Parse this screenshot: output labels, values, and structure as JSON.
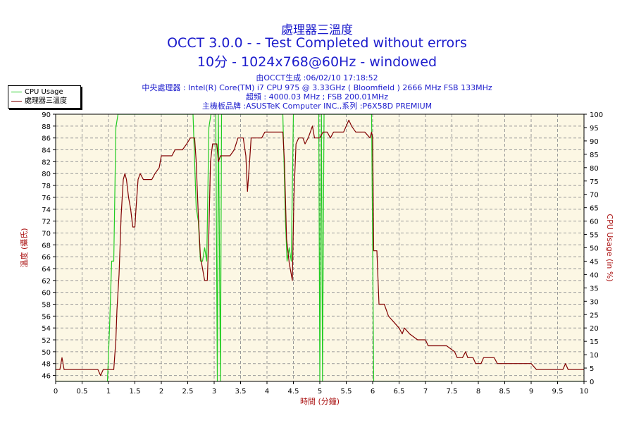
{
  "chart_data": {
    "type": "line",
    "title": "處理器三溫度",
    "subtitle_line1": "OCCT 3.0.0 -  - Test Completed without errors",
    "subtitle_line2": "10分 - 1024x768@60Hz - windowed",
    "info_lines": [
      "由OCCT生成 :06/02/10 17:18:52",
      "中央處理器 : Intel(R) Core(TM) i7 CPU 975 @ 3.33GHz ( Bloomfield ) 2666 MHz FSB 133MHz",
      "超頻 : 4000.03 MHz ; FSB 200.01MHz",
      "主機板品牌 :ASUSTeK Computer INC.,系列 :P6X58D PREMIUM"
    ],
    "xlabel": "時間 (分鐘)",
    "ylabel_left": "溫度 (攝氏)",
    "ylabel_right": "CPU Usage (in %)",
    "xlim": [
      0,
      10
    ],
    "ylim_left": [
      45,
      90
    ],
    "ylim_right": [
      0,
      100
    ],
    "x_ticks": [
      "0",
      "0.5",
      "1",
      "1.5",
      "2",
      "2.5",
      "3",
      "3.5",
      "4",
      "4.5",
      "5",
      "5.5",
      "6",
      "6.5",
      "7",
      "7.5",
      "8",
      "8.5",
      "9",
      "9.5",
      "10"
    ],
    "y_ticks_left": [
      "46",
      "48",
      "50",
      "52",
      "54",
      "56",
      "58",
      "60",
      "62",
      "64",
      "66",
      "68",
      "70",
      "72",
      "74",
      "76",
      "78",
      "80",
      "82",
      "84",
      "86",
      "88",
      "90"
    ],
    "y_ticks_right": [
      "0",
      "5",
      "10",
      "15",
      "20",
      "25",
      "30",
      "35",
      "40",
      "45",
      "50",
      "55",
      "60",
      "65",
      "70",
      "75",
      "80",
      "85",
      "90",
      "95",
      "100"
    ],
    "grid": true,
    "legend_position": "top-left",
    "colors": {
      "cpu_usage": "#22cc22",
      "temperature": "#800000",
      "plot_bg": "#fcf7e4",
      "title": "#1b1bcc",
      "axis_label": "#aa1111"
    },
    "series": [
      {
        "name": "CPU Usage",
        "axis": "right",
        "points": [
          [
            0,
            0
          ],
          [
            0.98,
            0
          ],
          [
            1.02,
            20
          ],
          [
            1.06,
            45
          ],
          [
            1.1,
            45
          ],
          [
            1.14,
            95
          ],
          [
            1.18,
            100
          ],
          [
            2.6,
            100
          ],
          [
            2.66,
            65
          ],
          [
            2.7,
            60
          ],
          [
            2.74,
            45
          ],
          [
            2.78,
            45
          ],
          [
            2.82,
            50
          ],
          [
            2.86,
            45
          ],
          [
            2.9,
            95
          ],
          [
            2.94,
            100
          ],
          [
            3.03,
            100
          ],
          [
            3.06,
            0
          ],
          [
            3.08,
            100
          ],
          [
            3.12,
            0
          ],
          [
            3.14,
            100
          ],
          [
            4.3,
            100
          ],
          [
            4.35,
            60
          ],
          [
            4.38,
            45
          ],
          [
            4.42,
            50
          ],
          [
            4.46,
            45
          ],
          [
            4.5,
            100
          ],
          [
            4.98,
            100
          ],
          [
            5.0,
            0
          ],
          [
            5.03,
            100
          ],
          [
            5.05,
            0
          ],
          [
            5.08,
            100
          ],
          [
            5.98,
            100
          ],
          [
            6.02,
            0
          ],
          [
            10,
            0
          ]
        ]
      },
      {
        "name": "處理器三溫度",
        "axis": "left",
        "points": [
          [
            0,
            47
          ],
          [
            0.08,
            47
          ],
          [
            0.12,
            49
          ],
          [
            0.16,
            47
          ],
          [
            0.8,
            47
          ],
          [
            0.85,
            46
          ],
          [
            0.9,
            47
          ],
          [
            1.05,
            47
          ],
          [
            1.1,
            47
          ],
          [
            1.14,
            52
          ],
          [
            1.16,
            57
          ],
          [
            1.2,
            63
          ],
          [
            1.24,
            73
          ],
          [
            1.28,
            79
          ],
          [
            1.31,
            80
          ],
          [
            1.34,
            79
          ],
          [
            1.38,
            76
          ],
          [
            1.42,
            74
          ],
          [
            1.46,
            71
          ],
          [
            1.5,
            71
          ],
          [
            1.52,
            74
          ],
          [
            1.56,
            79
          ],
          [
            1.6,
            80
          ],
          [
            1.66,
            79
          ],
          [
            1.82,
            79
          ],
          [
            1.88,
            80
          ],
          [
            1.96,
            81
          ],
          [
            2.0,
            83
          ],
          [
            2.2,
            83
          ],
          [
            2.26,
            84
          ],
          [
            2.4,
            84
          ],
          [
            2.48,
            85
          ],
          [
            2.55,
            86
          ],
          [
            2.63,
            86
          ],
          [
            2.66,
            82
          ],
          [
            2.7,
            73
          ],
          [
            2.74,
            66
          ],
          [
            2.78,
            64
          ],
          [
            2.82,
            62
          ],
          [
            2.87,
            62
          ],
          [
            2.9,
            70
          ],
          [
            2.93,
            82
          ],
          [
            2.97,
            85
          ],
          [
            3.05,
            85
          ],
          [
            3.08,
            82
          ],
          [
            3.12,
            83
          ],
          [
            3.3,
            83
          ],
          [
            3.38,
            84
          ],
          [
            3.45,
            86
          ],
          [
            3.55,
            86
          ],
          [
            3.6,
            83
          ],
          [
            3.63,
            77
          ],
          [
            3.67,
            82
          ],
          [
            3.7,
            86
          ],
          [
            3.78,
            86
          ],
          [
            3.9,
            86
          ],
          [
            3.96,
            87
          ],
          [
            4.3,
            87
          ],
          [
            4.33,
            82
          ],
          [
            4.37,
            69
          ],
          [
            4.42,
            65
          ],
          [
            4.46,
            63
          ],
          [
            4.48,
            62
          ],
          [
            4.51,
            76
          ],
          [
            4.55,
            85
          ],
          [
            4.6,
            86
          ],
          [
            4.68,
            86
          ],
          [
            4.72,
            85
          ],
          [
            4.78,
            86
          ],
          [
            4.82,
            87
          ],
          [
            4.86,
            88
          ],
          [
            4.9,
            86
          ],
          [
            5.0,
            86
          ],
          [
            5.06,
            87
          ],
          [
            5.14,
            87
          ],
          [
            5.2,
            86
          ],
          [
            5.26,
            87
          ],
          [
            5.35,
            87
          ],
          [
            5.45,
            87
          ],
          [
            5.5,
            88
          ],
          [
            5.55,
            89
          ],
          [
            5.6,
            88
          ],
          [
            5.68,
            87
          ],
          [
            5.75,
            87
          ],
          [
            5.85,
            87
          ],
          [
            5.95,
            86
          ],
          [
            5.98,
            87
          ],
          [
            6.0,
            86
          ],
          [
            6.02,
            67
          ],
          [
            6.08,
            67
          ],
          [
            6.12,
            58
          ],
          [
            6.22,
            58
          ],
          [
            6.3,
            56
          ],
          [
            6.4,
            55
          ],
          [
            6.5,
            54
          ],
          [
            6.56,
            53
          ],
          [
            6.6,
            54
          ],
          [
            6.7,
            53
          ],
          [
            6.85,
            52
          ],
          [
            7.0,
            52
          ],
          [
            7.05,
            51
          ],
          [
            7.4,
            51
          ],
          [
            7.55,
            50
          ],
          [
            7.6,
            49
          ],
          [
            7.7,
            49
          ],
          [
            7.76,
            50
          ],
          [
            7.8,
            49
          ],
          [
            7.9,
            49
          ],
          [
            7.95,
            48
          ],
          [
            8.05,
            48
          ],
          [
            8.1,
            49
          ],
          [
            8.3,
            49
          ],
          [
            8.36,
            48
          ],
          [
            8.5,
            48
          ],
          [
            9.0,
            48
          ],
          [
            9.1,
            47
          ],
          [
            9.6,
            47
          ],
          [
            9.65,
            48
          ],
          [
            9.7,
            47
          ],
          [
            10,
            47
          ]
        ]
      }
    ]
  }
}
